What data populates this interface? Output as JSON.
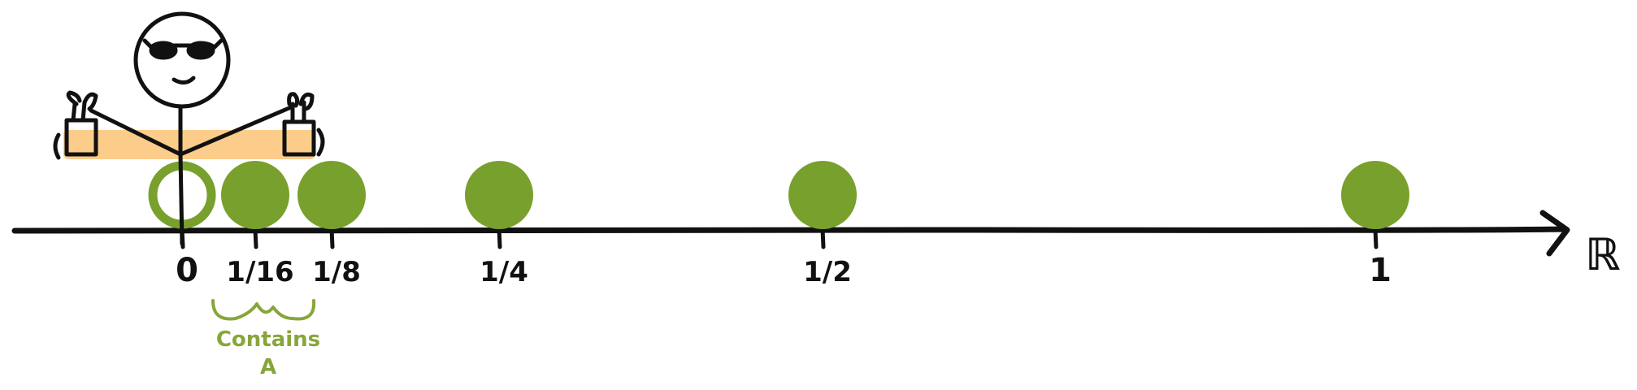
{
  "colors": {
    "ink": "#111111",
    "dot": "#78a02c",
    "highlight": "#fccc8a",
    "annotation": "#87a63a"
  },
  "axis": {
    "label": "ℝ"
  },
  "ticks": [
    {
      "label": "0",
      "value": 0
    },
    {
      "label": "1/16",
      "value": 0.0625
    },
    {
      "label": "1/8",
      "value": 0.125
    },
    {
      "label": "1/4",
      "value": 0.25
    },
    {
      "label": "1/2",
      "value": 0.5
    },
    {
      "label": "1",
      "value": 1
    }
  ],
  "points": [
    {
      "value": 0,
      "filled": false
    },
    {
      "value": 0.0625,
      "filled": true
    },
    {
      "value": 0.125,
      "filled": true
    },
    {
      "value": 0.25,
      "filled": true
    },
    {
      "value": 0.5,
      "filled": true
    },
    {
      "value": 1,
      "filled": true
    }
  ],
  "annotation": {
    "line1": "Contains",
    "line2": "A"
  },
  "figure": {
    "icon": "stick-figure-with-sunglasses-icon"
  }
}
